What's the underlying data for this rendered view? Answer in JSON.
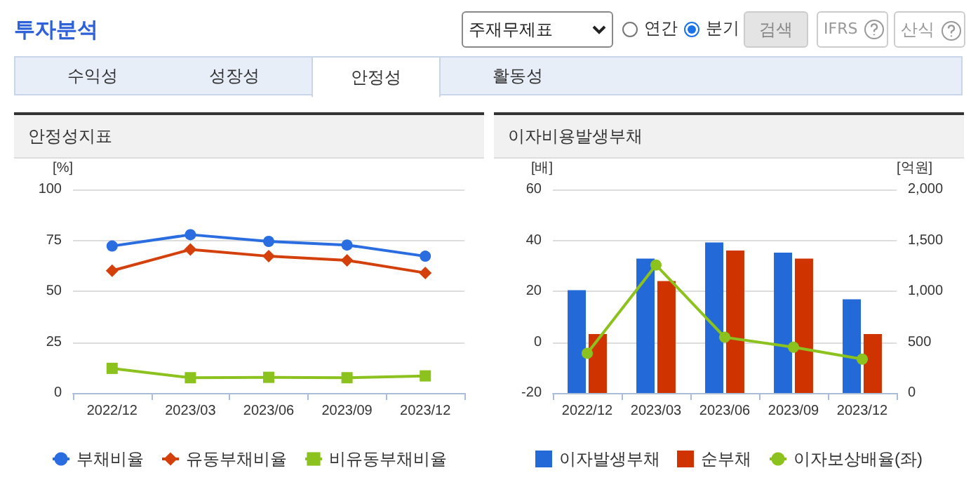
{
  "chart_data": [
    {
      "type": "other",
      "title": "투자분석",
      "annotations": [
        "주재무제표",
        "연간",
        "분기",
        "검색",
        "IFRS",
        "산식",
        "수익성",
        "성장성",
        "안정성",
        "활동성"
      ]
    },
    {
      "type": "line",
      "title": "안정성지표",
      "ylabel": "[%]",
      "categories": [
        "2022/12",
        "2023/03",
        "2023/06",
        "2023/09",
        "2023/12"
      ],
      "ylim": [
        0,
        100
      ],
      "yticks": [
        0,
        25,
        50,
        75,
        100
      ],
      "grid": "y",
      "legend": "bottom",
      "line_style": "solid",
      "series": [
        {
          "name": "부채비율",
          "color": "#2a6de0",
          "marker": "circle",
          "values": [
            72.2,
            77.8,
            74.5,
            72.7,
            67.2
          ]
        },
        {
          "name": "유동부채비율",
          "color": "#d4400c",
          "marker": "diamond",
          "values": [
            60.1,
            70.5,
            67.2,
            65.2,
            59.0
          ]
        },
        {
          "name": "비유동부채비율",
          "color": "#8cc21e",
          "marker": "square",
          "values": [
            12.1,
            7.5,
            7.7,
            7.5,
            8.4
          ]
        }
      ]
    },
    {
      "type": "bar",
      "title": "이자비용발생부채",
      "ylabel": "[배]",
      "y2label": "[억원]",
      "categories": [
        "2022/12",
        "2023/03",
        "2023/06",
        "2023/09",
        "2023/12"
      ],
      "ylim": [
        -20,
        60
      ],
      "yticks": [
        -20,
        0,
        20,
        40,
        60
      ],
      "y2lim": [
        0,
        2000
      ],
      "y2ticks": [
        0,
        500,
        {
          "value": 1000,
          "label": "1,000"
        },
        {
          "value": 1500,
          "label": "1,500"
        },
        {
          "value": 2000,
          "label": "2,000"
        }
      ],
      "grid": "y",
      "legend": "bottom",
      "series": [
        {
          "name": "이자발생부채",
          "type": "bar",
          "axis": "y2",
          "color": "#2369d8",
          "values": [
            1010,
            1320,
            1480,
            1380,
            920
          ]
        },
        {
          "name": "순부채",
          "type": "bar",
          "axis": "y2",
          "color": "#cf3400",
          "values": [
            580,
            1100,
            1400,
            1320,
            580
          ]
        },
        {
          "name": "이자보상배율(좌)",
          "type": "line",
          "axis": "y",
          "color": "#8cc21e",
          "marker": "circle",
          "values": [
            -4.4,
            30.3,
            1.9,
            -2.0,
            -6.7
          ]
        }
      ]
    }
  ]
}
